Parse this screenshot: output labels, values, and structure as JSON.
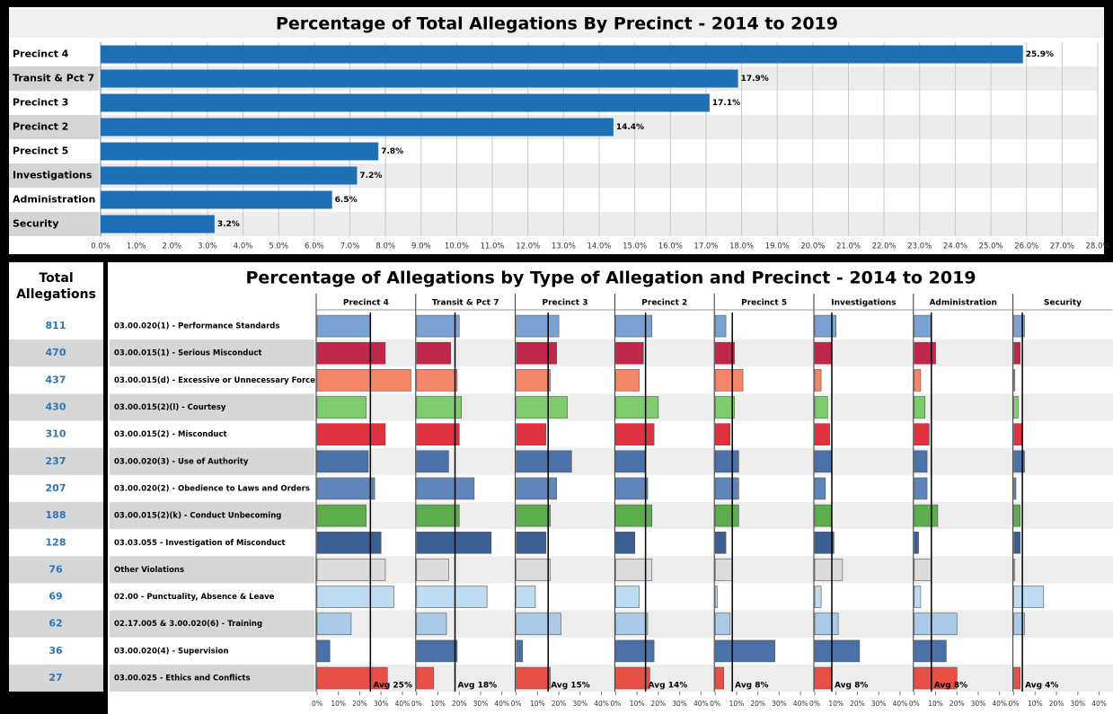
{
  "chart_data": [
    {
      "type": "hbar",
      "title": "Percentage of Total Allegations By Precinct - 2014 to 2019",
      "categories": [
        "Precinct 4",
        "Transit & Pct 7",
        "Precinct 3",
        "Precinct 2",
        "Precinct 5",
        "Investigations",
        "Administration",
        "Security"
      ],
      "values": [
        25.9,
        17.9,
        17.1,
        14.4,
        7.8,
        7.2,
        6.5,
        3.2
      ],
      "value_labels": [
        "25.9%",
        "17.9%",
        "17.1%",
        "14.4%",
        "7.8%",
        "7.2%",
        "6.5%",
        "3.2%"
      ],
      "color": "#1f6fb5",
      "grid": true,
      "xlim": [
        0,
        28
      ],
      "xticks": [
        {
          "value": 0,
          "label": "0.0%"
        },
        {
          "value": 1,
          "label": "1.0%"
        },
        {
          "value": 2,
          "label": "2.0%"
        },
        {
          "value": 3,
          "label": "3.0%"
        },
        {
          "value": 4,
          "label": "4.0%"
        },
        {
          "value": 5,
          "label": "5.0%"
        },
        {
          "value": 6,
          "label": "6.0%"
        },
        {
          "value": 7,
          "label": "7.0%"
        },
        {
          "value": 8,
          "label": "8.0%"
        },
        {
          "value": 9,
          "label": "9.0%"
        },
        {
          "value": 10,
          "label": "10.0%"
        },
        {
          "value": 11,
          "label": "11.0%"
        },
        {
          "value": 12,
          "label": "12.0%"
        },
        {
          "value": 13,
          "label": "13.0%"
        },
        {
          "value": 14,
          "label": "14.0%"
        },
        {
          "value": 15,
          "label": "15.0%"
        },
        {
          "value": 16,
          "label": "16.0%"
        },
        {
          "value": 17,
          "label": "17.0%"
        },
        {
          "value": 18,
          "label": "18.0%"
        },
        {
          "value": 19,
          "label": "19.0%"
        },
        {
          "value": 20,
          "label": "20.0%"
        },
        {
          "value": 21,
          "label": "21.0%"
        },
        {
          "value": 22,
          "label": "22.0%"
        },
        {
          "value": 23,
          "label": "23.0%"
        },
        {
          "value": 24,
          "label": "24.0%"
        },
        {
          "value": 25,
          "label": "25.0%"
        },
        {
          "value": 26,
          "label": "26.0%"
        },
        {
          "value": 27,
          "label": "27.0%"
        },
        {
          "value": 28,
          "label": "28.0%"
        }
      ]
    },
    {
      "type": "small_multiples",
      "title": "Percentage of Allegations by Type of Allegation and Precinct - 2014 to 2019",
      "categories": [
        "03.00.020(1) - Performance Standards",
        "03.00.015(1) - Serious Misconduct",
        "03.00.015(d) - Excessive or Unnecessary Force",
        "03.00.015(2)(l) - Courtesy",
        "03.00.015(2) - Misconduct",
        "03.00.020(3) - Use of Authority",
        "03.00.020(2) - Obedience to Laws and Orders",
        "03.00.015(2)(k) - Conduct Unbecoming",
        "03.03.055 - Investigation of Misconduct",
        "Other Violations",
        "02.00 - Punctuality, Absence & Leave",
        "02.17.005 & 3.00.020(6) - Training",
        "03.00.020(4) - Supervision",
        "03.00.025 - Ethics and Conflicts"
      ],
      "colors": [
        "#7aa3d4",
        "#c0254a",
        "#f4876a",
        "#7fcc6e",
        "#e0323e",
        "#4a72a8",
        "#5f86bb",
        "#5cae4c",
        "#3a5f94",
        "#dcdcdc",
        "#bcdcf3",
        "#a9cbe9",
        "#4a72a8",
        "#e95045"
      ],
      "xlim": [
        0,
        45
      ],
      "xticks": [
        {
          "value": 0,
          "label": "0%"
        },
        {
          "value": 10,
          "label": "10%"
        },
        {
          "value": 20,
          "label": "20%"
        },
        {
          "value": 30,
          "label": "30%"
        },
        {
          "value": 40,
          "label": "40%"
        }
      ],
      "panels": [
        {
          "name": "Precinct 4",
          "values": [
            25,
            32,
            44,
            23,
            32,
            24,
            27,
            23,
            30,
            32,
            36,
            16,
            6,
            33
          ],
          "avg": 25,
          "avg_label": "Avg 25%"
        },
        {
          "name": "Transit & Pct 7",
          "values": [
            20,
            16,
            19,
            21,
            20,
            15,
            27,
            20,
            35,
            15,
            33,
            14,
            19,
            8
          ],
          "avg": 18,
          "avg_label": "Avg 18%"
        },
        {
          "name": "Precinct 3",
          "values": [
            20,
            19,
            16,
            24,
            14,
            26,
            19,
            16,
            14,
            16,
            9,
            21,
            3,
            16
          ],
          "avg": 15,
          "avg_label": "Avg 15%"
        },
        {
          "name": "Precinct 2",
          "values": [
            17,
            13,
            11,
            20,
            18,
            14,
            15,
            17,
            9,
            17,
            11,
            15,
            18,
            16
          ],
          "avg": 14,
          "avg_label": "Avg 14%"
        },
        {
          "name": "Precinct 5",
          "values": [
            5,
            9,
            13,
            9,
            7,
            11,
            11,
            11,
            5,
            8,
            1,
            7,
            28,
            4
          ],
          "avg": 8,
          "avg_label": "Avg 8%"
        },
        {
          "name": "Investigations",
          "values": [
            10,
            8,
            3,
            6,
            7,
            8,
            5,
            8,
            9,
            13,
            3,
            11,
            21,
            8
          ],
          "avg": 8,
          "avg_label": "Avg 8%"
        },
        {
          "name": "Administration",
          "values": [
            8,
            10,
            3,
            5,
            7,
            6,
            6,
            11,
            2,
            8,
            3,
            20,
            15,
            20
          ],
          "avg": 8,
          "avg_label": "Avg 8%"
        },
        {
          "name": "Security",
          "values": [
            5,
            3,
            0.5,
            2,
            4,
            5,
            1,
            3,
            3,
            0.5,
            14,
            5,
            0,
            3
          ],
          "avg": 4,
          "avg_label": "Avg 4%"
        }
      ]
    }
  ],
  "totals": {
    "title": "Total Allegations",
    "values": [
      811,
      470,
      437,
      430,
      310,
      237,
      207,
      188,
      128,
      76,
      69,
      62,
      36,
      27
    ]
  }
}
